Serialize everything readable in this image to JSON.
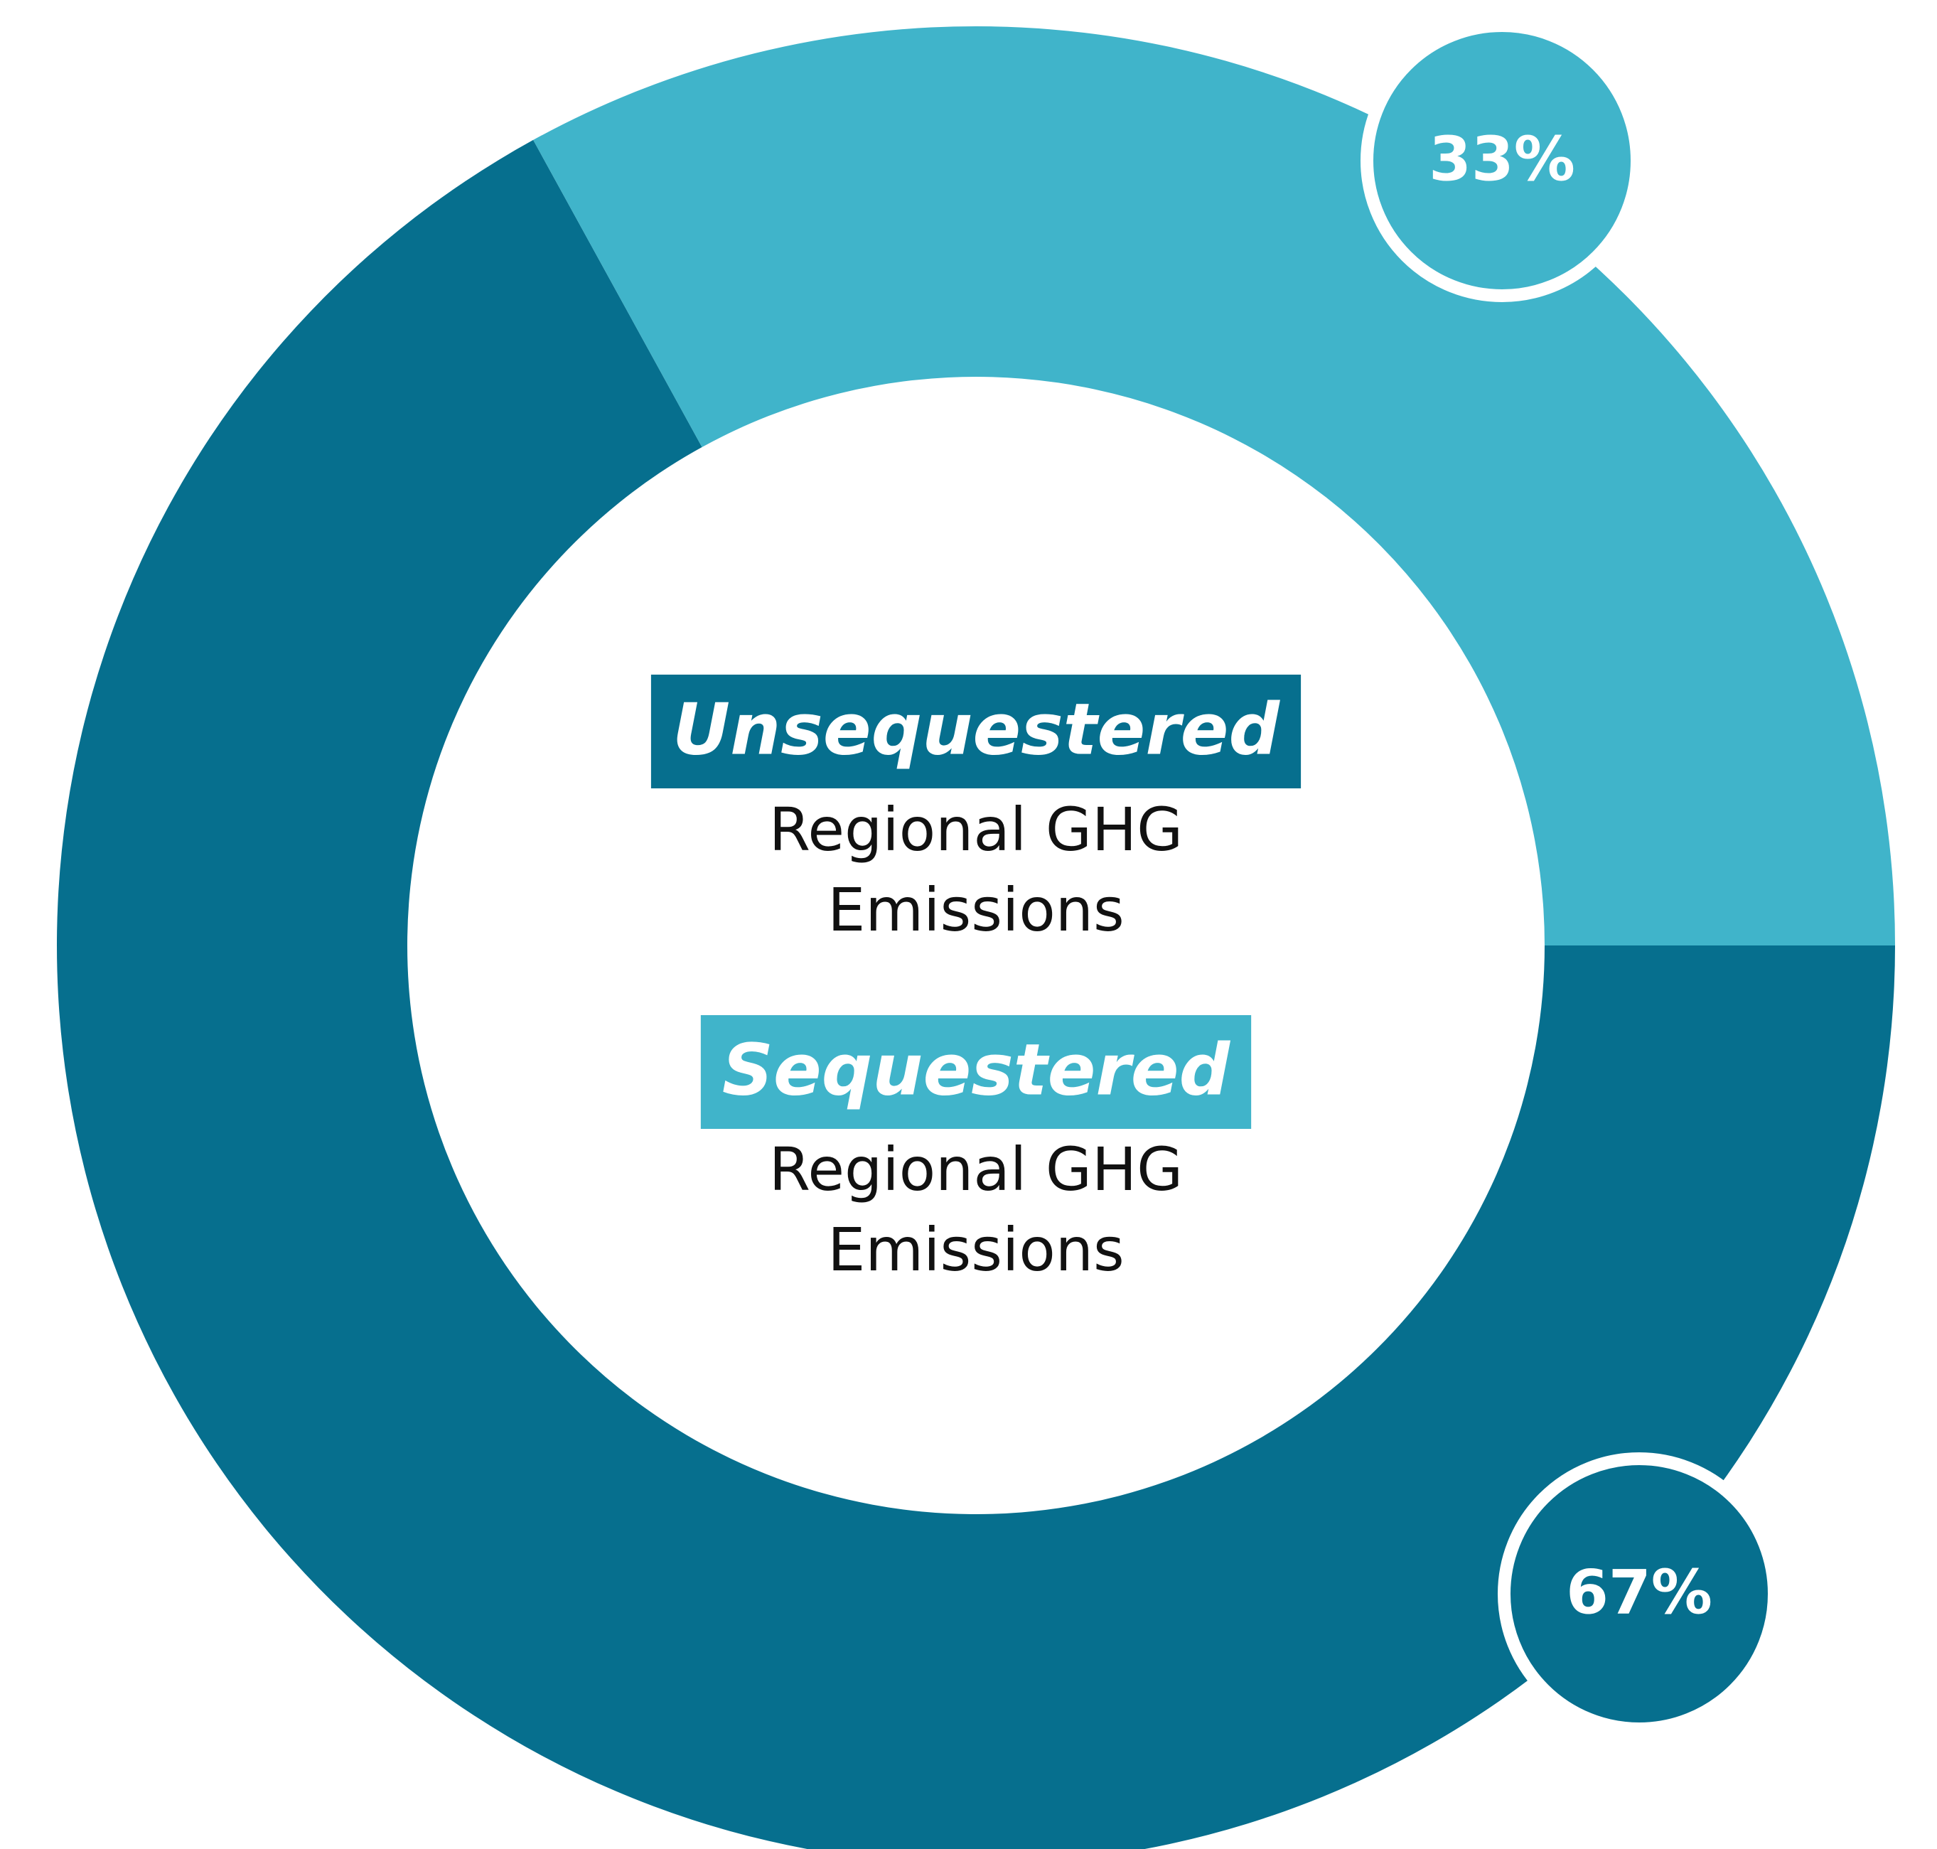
{
  "chart_data": {
    "type": "donut",
    "categories": [
      "Unsequestered",
      "Sequestered"
    ],
    "descriptions": [
      [
        "Regional GHG",
        "Emissions"
      ],
      [
        "Regional GHG",
        "Emissions"
      ]
    ],
    "values": [
      67,
      33
    ],
    "value_labels": [
      "67%",
      "33%"
    ],
    "colors": [
      "#066f8e",
      "#40b4ca"
    ]
  }
}
